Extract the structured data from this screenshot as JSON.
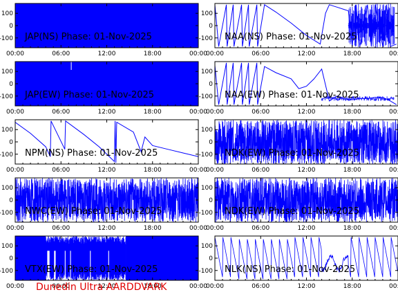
{
  "figure": {
    "footer": "Dunedin Ultra AARDDVARK",
    "series_color": "#0000ff",
    "footer_color": "#e00000"
  },
  "chart_data": [
    {
      "type": "line",
      "title": "JAP(NS) Phase: 01-Nov-2025",
      "station": "JAP",
      "component": "NS",
      "xticks": [
        "00:00",
        "06:00",
        "12:00",
        "18:00",
        "00:00"
      ],
      "xlim": [
        0,
        24
      ],
      "ylim": [
        -180,
        180
      ],
      "yticks": [
        100,
        0,
        -100
      ],
      "style": "filled",
      "grid": false,
      "x": [
        0,
        24
      ],
      "y": [
        0,
        0
      ]
    },
    {
      "type": "line",
      "title": "NAA(NS) Phase: 01-Nov-2025",
      "station": "NAA",
      "component": "NS",
      "xticks": [
        "00:00",
        "06:00",
        "12:00",
        "18:00",
        "00:00"
      ],
      "xlim": [
        0,
        24
      ],
      "ylim": [
        -180,
        180
      ],
      "yticks": [
        100,
        0,
        -100
      ],
      "style": "wrapped",
      "grid": false,
      "x": [
        0,
        0.5,
        1.5,
        1.6,
        2.4,
        2.5,
        3.5,
        3.6,
        4.4,
        4.5,
        5.5,
        5.6,
        6.5,
        8,
        10,
        12,
        13.8,
        14,
        14.5,
        15,
        16,
        17,
        17.5,
        18,
        18.5,
        19,
        20,
        20.5,
        21,
        22,
        22.5,
        23,
        23.8
      ],
      "y": [
        170,
        -170,
        170,
        -170,
        170,
        -170,
        170,
        -170,
        170,
        -170,
        170,
        -170,
        170,
        110,
        20,
        -80,
        -150,
        -80,
        100,
        170,
        150,
        130,
        120,
        -170,
        170,
        -170,
        170,
        -170,
        170,
        -170,
        170,
        -170,
        -150
      ]
    },
    {
      "type": "line",
      "title": "JAP(EW) Phase: 01-Nov-2025",
      "station": "JAP",
      "component": "EW",
      "xticks": [
        "00:00",
        "06:00",
        "12:00",
        "18:00",
        "00:00"
      ],
      "xlim": [
        0,
        24
      ],
      "ylim": [
        -180,
        180
      ],
      "yticks": [
        100,
        0,
        -100
      ],
      "style": "filled",
      "grid": false,
      "x": [
        0,
        24
      ],
      "y": [
        0,
        0
      ]
    },
    {
      "type": "line",
      "title": "NAA(EW) Phase: 01-Nov-2025",
      "station": "NAA",
      "component": "EW",
      "xticks": [
        "00:00",
        "06:00",
        "12:00",
        "18:00",
        "00:00"
      ],
      "xlim": [
        0,
        24
      ],
      "ylim": [
        -180,
        180
      ],
      "yticks": [
        100,
        0,
        -100
      ],
      "style": "wrapped",
      "grid": false,
      "x": [
        0,
        0.5,
        1.5,
        1.6,
        2.4,
        2.5,
        3.5,
        3.6,
        4.4,
        4.5,
        5.5,
        5.6,
        6.5,
        8,
        10,
        11,
        12,
        13,
        14,
        15,
        16,
        17,
        17.5,
        18,
        19,
        20,
        21,
        22,
        23,
        23.8
      ],
      "y": [
        150,
        -170,
        170,
        -170,
        170,
        -170,
        170,
        -170,
        170,
        -170,
        170,
        -170,
        140,
        90,
        40,
        -40,
        -20,
        40,
        120,
        -140,
        -100,
        -120,
        -130,
        -130,
        -120,
        -120,
        -110,
        -110,
        -140,
        -170
      ]
    },
    {
      "type": "line",
      "title": "NPM(NS) Phase: 01-Nov-2025",
      "station": "NPM",
      "component": "NS",
      "xticks": [
        "00:00",
        "06:00",
        "12:00",
        "18:00",
        "00:00"
      ],
      "xlim": [
        0,
        24
      ],
      "ylim": [
        -180,
        180
      ],
      "yticks": [
        100,
        0,
        -100
      ],
      "style": "wrapped",
      "grid": false,
      "x": [
        0,
        2,
        4,
        4.6,
        4.7,
        6.5,
        6.6,
        9,
        11,
        13,
        13.1,
        13.2,
        13.3,
        15.5,
        16.5,
        17,
        18,
        20,
        22,
        24
      ],
      "y": [
        160,
        70,
        -40,
        -120,
        170,
        -60,
        170,
        60,
        -40,
        -160,
        170,
        -170,
        160,
        80,
        -80,
        40,
        -30,
        -60,
        -90,
        -120
      ]
    },
    {
      "type": "line",
      "title": "NDK(EW) Phase: 01-Nov-2025",
      "station": "NDK",
      "component": "EW",
      "xticks": [
        "00:00",
        "06:00",
        "12:00",
        "18:00",
        "00:00"
      ],
      "xlim": [
        0,
        24
      ],
      "ylim": [
        -180,
        180
      ],
      "yticks": [
        100,
        0,
        -100
      ],
      "style": "noisy",
      "grid": false,
      "x": [
        0,
        24
      ],
      "y": [
        0,
        0
      ]
    },
    {
      "type": "line",
      "title": "NWC(EW) Phase: 01-Nov-2025",
      "station": "NWC",
      "component": "EW",
      "xticks": [
        "00:00",
        "06:00",
        "12:00",
        "18:00",
        "00:00"
      ],
      "xlim": [
        0,
        24
      ],
      "ylim": [
        -180,
        180
      ],
      "yticks": [
        100,
        0,
        -100
      ],
      "style": "noisy",
      "grid": false,
      "x": [
        0,
        24
      ],
      "y": [
        0,
        0
      ]
    },
    {
      "type": "line",
      "title": "NDK(EW) Phase: 01-Nov-2025",
      "station": "NDK",
      "component": "EW",
      "xticks": [
        "00:00",
        "06:00",
        "12:00",
        "18:00",
        "00:00"
      ],
      "xlim": [
        0,
        24
      ],
      "ylim": [
        -180,
        180
      ],
      "yticks": [
        100,
        0,
        -100
      ],
      "style": "noisy",
      "grid": false,
      "x": [
        0,
        24
      ],
      "y": [
        0,
        0
      ]
    },
    {
      "type": "line",
      "title": "VTX(EW) Phase: 01-Nov-2025",
      "station": "VTX",
      "component": "EW",
      "xticks": [
        "00:00",
        "06:00",
        "12:00",
        "18:00",
        "00:00"
      ],
      "xlim": [
        0,
        24
      ],
      "ylim": [
        -180,
        180
      ],
      "yticks": [
        100,
        0,
        -100
      ],
      "style": "filled",
      "grid": false,
      "x": [
        0,
        24
      ],
      "y": [
        0,
        0
      ]
    },
    {
      "type": "line",
      "title": "NLK(NS) Phase: 01-Nov-2025",
      "station": "NLK",
      "component": "NS",
      "xticks": [
        "00:00",
        "06:00",
        "12:00",
        "18:00",
        "00:00"
      ],
      "xlim": [
        0,
        24
      ],
      "ylim": [
        -180,
        180
      ],
      "yticks": [
        100,
        0,
        -100
      ],
      "style": "sawtooth",
      "grid": false,
      "x": [
        0,
        24
      ],
      "y": [
        0,
        0
      ]
    }
  ]
}
